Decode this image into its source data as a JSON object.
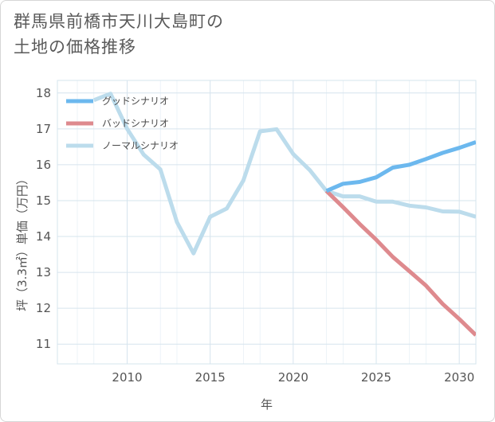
{
  "title": {
    "line1": "群馬県前橋市天川大島町の",
    "line2": "土地の価格推移"
  },
  "colors": {
    "good": "#6cb8ee",
    "bad": "#de8a8e",
    "normal": "#bcdcec",
    "grid": "#d6e4ee"
  },
  "chart_data": {
    "type": "line",
    "xlabel": "年",
    "ylabel": "坪（3.3㎡）単価（万円）",
    "xlim": [
      2005.8,
      2031
    ],
    "ylim": [
      10.45,
      18.35
    ],
    "xticks": [
      2010,
      2015,
      2020,
      2025,
      2030
    ],
    "yticks": [
      11,
      12,
      13,
      14,
      15,
      16,
      17,
      18
    ],
    "series": [
      {
        "key": "good",
        "name": "グッドシナリオ",
        "x": [
          2022,
          2023,
          2024,
          2025,
          2026,
          2027,
          2028,
          2029,
          2030,
          2031
        ],
        "y": [
          15.27,
          15.47,
          15.52,
          15.65,
          15.92,
          16.0,
          16.16,
          16.33,
          16.47,
          16.63
        ]
      },
      {
        "key": "bad",
        "name": "バッドシナリオ",
        "x": [
          2022,
          2023,
          2024,
          2025,
          2026,
          2027,
          2028,
          2029,
          2030,
          2031
        ],
        "y": [
          15.27,
          14.82,
          14.35,
          13.91,
          13.43,
          13.03,
          12.63,
          12.12,
          11.7,
          11.25
        ]
      },
      {
        "key": "normal",
        "name": "ノーマルシナリオ",
        "x": [
          2008,
          2009,
          2010,
          2011,
          2012,
          2013,
          2014,
          2015,
          2016,
          2017,
          2018,
          2019,
          2020,
          2021,
          2022,
          2023,
          2024,
          2025,
          2026,
          2027,
          2028,
          2029,
          2030,
          2031
        ],
        "y": [
          17.8,
          17.98,
          17.0,
          16.28,
          15.87,
          14.4,
          13.53,
          14.55,
          14.78,
          15.56,
          16.93,
          16.99,
          16.3,
          15.85,
          15.27,
          15.12,
          15.12,
          14.97,
          14.97,
          14.86,
          14.81,
          14.7,
          14.69,
          14.55
        ]
      }
    ]
  }
}
